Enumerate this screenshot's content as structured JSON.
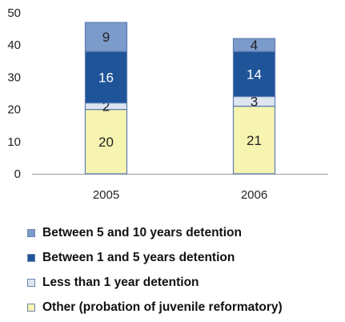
{
  "chart_data": {
    "type": "bar",
    "stacked": true,
    "categories": [
      "2005",
      "2006"
    ],
    "series": [
      {
        "name": "Other (probation of juvenile reformatory)",
        "values": [
          20,
          21
        ],
        "color": "#f6f4b0",
        "label_color": "#222222"
      },
      {
        "name": "Less than 1 year detention",
        "values": [
          2,
          3
        ],
        "color": "#dde5f1",
        "label_color": "#222222"
      },
      {
        "name": "Between 1 and 5 years detention",
        "values": [
          16,
          14
        ],
        "color": "#1f5499",
        "label_color": "#ffffff"
      },
      {
        "name": "Between 5 and 10 years detention",
        "values": [
          9,
          4
        ],
        "color": "#7b9ccb",
        "label_color": "#222222"
      }
    ],
    "ylim": [
      0,
      50
    ],
    "yticks": [
      "0",
      "10",
      "20",
      "30",
      "40",
      "50"
    ],
    "title": "",
    "xlabel": "",
    "ylabel": "",
    "grid": false,
    "legend_position": "bottom",
    "legend_order": [
      3,
      2,
      1,
      0
    ]
  }
}
